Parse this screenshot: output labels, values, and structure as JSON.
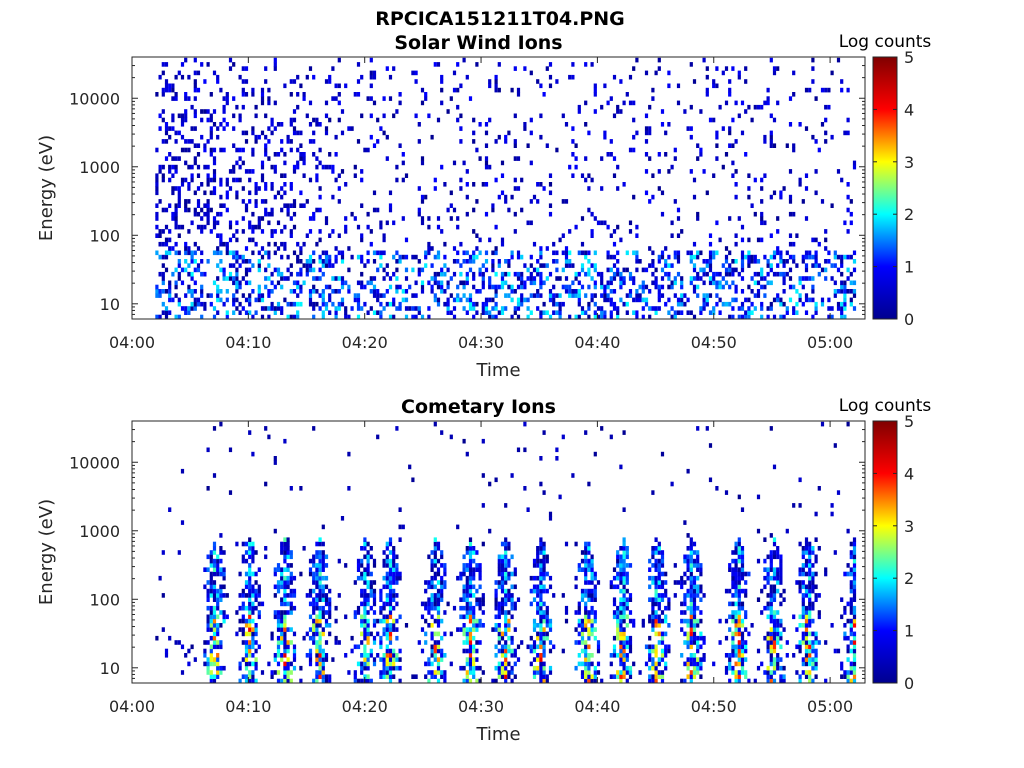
{
  "figure_title": "RPCICA151211T04.PNG",
  "colormap": [
    "#00008f",
    "#0000ff",
    "#00ffff",
    "#ffff00",
    "#ff0000",
    "#800000"
  ],
  "chart_data": [
    {
      "type": "heatmap",
      "title": "Solar Wind Ions",
      "xlabel": "Time",
      "ylabel": "Energy (eV)",
      "x_ticks": [
        "04:00",
        "04:10",
        "04:20",
        "04:30",
        "04:40",
        "04:50",
        "05:00"
      ],
      "x_range": [
        "04:00",
        "05:03"
      ],
      "y_ticks": [
        "10",
        "100",
        "1000",
        "10000"
      ],
      "y_scale": "log",
      "y_range": [
        6,
        40000
      ],
      "colorbar_label": "Log counts",
      "colorbar_ticks": [
        "0",
        "1",
        "2",
        "3",
        "4",
        "5"
      ],
      "color_range": [
        0,
        5
      ],
      "peak_log_counts": 2,
      "data_extent": [
        "04:02",
        "05:02"
      ]
    },
    {
      "type": "heatmap",
      "title": "Cometary Ions",
      "xlabel": "Time",
      "ylabel": "Energy (eV)",
      "x_ticks": [
        "04:00",
        "04:10",
        "04:20",
        "04:30",
        "04:40",
        "04:50",
        "05:00"
      ],
      "x_range": [
        "04:00",
        "05:03"
      ],
      "y_ticks": [
        "10",
        "100",
        "1000",
        "10000"
      ],
      "y_scale": "log",
      "y_range": [
        6,
        40000
      ],
      "colorbar_label": "Log counts",
      "colorbar_ticks": [
        "0",
        "1",
        "2",
        "3",
        "4",
        "5"
      ],
      "color_range": [
        0,
        5
      ],
      "peak_log_counts": 3.5,
      "burst_times": [
        "04:07",
        "04:10",
        "04:13",
        "04:16",
        "04:20",
        "04:22",
        "04:26",
        "04:29",
        "04:32",
        "04:35",
        "04:39",
        "04:42",
        "04:45",
        "04:48",
        "04:52",
        "04:55",
        "04:58",
        "05:02"
      ],
      "data_extent": [
        "04:02",
        "05:02"
      ]
    }
  ]
}
